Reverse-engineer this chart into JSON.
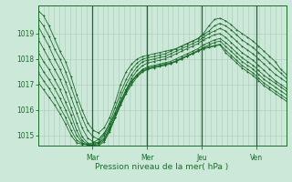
{
  "title": "",
  "xlabel": "Pression niveau de la mer( hPa )",
  "bg_color": "#cce8d8",
  "plot_bg_color": "#cce8d8",
  "grid_color": "#aac8b8",
  "line_color": "#1a6b2a",
  "ylim": [
    1014.6,
    1020.1
  ],
  "yticks": [
    1015,
    1016,
    1017,
    1018,
    1019
  ],
  "day_labels": [
    "Mar",
    "Mer",
    "Jeu",
    "Ven"
  ],
  "day_positions": [
    0.22,
    0.44,
    0.66,
    0.88
  ],
  "series": [
    [
      1019.9,
      1019.7,
      1019.3,
      1018.8,
      1018.3,
      1017.9,
      1017.3,
      1016.6,
      1016.0,
      1015.5,
      1015.2,
      1015.1,
      1015.3,
      1015.7,
      1016.3,
      1017.0,
      1017.5,
      1017.8,
      1018.0,
      1018.1,
      1018.15,
      1018.2,
      1018.25,
      1018.3,
      1018.35,
      1018.4,
      1018.5,
      1018.6,
      1018.7,
      1018.8,
      1019.0,
      1019.3,
      1019.55,
      1019.6,
      1019.5,
      1019.35,
      1019.15,
      1019.0,
      1018.85,
      1018.7,
      1018.5,
      1018.3,
      1018.1,
      1017.9,
      1017.6,
      1017.4
    ],
    [
      1019.6,
      1019.3,
      1018.9,
      1018.4,
      1018.0,
      1017.5,
      1016.9,
      1016.3,
      1015.7,
      1015.2,
      1014.95,
      1014.85,
      1015.05,
      1015.5,
      1016.1,
      1016.7,
      1017.2,
      1017.6,
      1017.85,
      1018.0,
      1018.05,
      1018.1,
      1018.15,
      1018.2,
      1018.3,
      1018.4,
      1018.5,
      1018.6,
      1018.7,
      1018.8,
      1018.95,
      1019.1,
      1019.3,
      1019.4,
      1019.3,
      1019.15,
      1018.95,
      1018.75,
      1018.6,
      1018.45,
      1018.25,
      1018.05,
      1017.85,
      1017.65,
      1017.45,
      1017.25
    ],
    [
      1019.3,
      1018.9,
      1018.5,
      1018.0,
      1017.6,
      1017.1,
      1016.5,
      1015.9,
      1015.3,
      1014.9,
      1014.75,
      1014.7,
      1014.85,
      1015.3,
      1015.9,
      1016.5,
      1017.0,
      1017.4,
      1017.7,
      1017.9,
      1017.95,
      1018.0,
      1018.05,
      1018.1,
      1018.2,
      1018.3,
      1018.4,
      1018.5,
      1018.6,
      1018.7,
      1018.85,
      1019.0,
      1019.1,
      1019.2,
      1019.1,
      1018.9,
      1018.7,
      1018.5,
      1018.35,
      1018.2,
      1018.0,
      1017.8,
      1017.6,
      1017.4,
      1017.25,
      1017.1
    ],
    [
      1018.8,
      1018.4,
      1018.0,
      1017.6,
      1017.2,
      1016.7,
      1016.1,
      1015.5,
      1014.95,
      1014.7,
      1014.6,
      1014.6,
      1014.75,
      1015.15,
      1015.7,
      1016.3,
      1016.8,
      1017.25,
      1017.55,
      1017.75,
      1017.85,
      1017.9,
      1017.95,
      1018.0,
      1018.1,
      1018.2,
      1018.3,
      1018.4,
      1018.5,
      1018.6,
      1018.75,
      1018.85,
      1018.95,
      1019.0,
      1018.85,
      1018.65,
      1018.45,
      1018.25,
      1018.1,
      1017.95,
      1017.75,
      1017.55,
      1017.35,
      1017.15,
      1017.0,
      1016.85
    ],
    [
      1018.3,
      1017.9,
      1017.6,
      1017.2,
      1016.8,
      1016.3,
      1015.8,
      1015.2,
      1014.8,
      1014.65,
      1014.6,
      1014.65,
      1014.8,
      1015.2,
      1015.7,
      1016.2,
      1016.7,
      1017.1,
      1017.4,
      1017.6,
      1017.7,
      1017.75,
      1017.8,
      1017.85,
      1017.9,
      1018.0,
      1018.1,
      1018.2,
      1018.3,
      1018.4,
      1018.55,
      1018.65,
      1018.75,
      1018.8,
      1018.65,
      1018.45,
      1018.25,
      1018.05,
      1017.9,
      1017.75,
      1017.55,
      1017.35,
      1017.2,
      1017.05,
      1016.9,
      1016.75
    ],
    [
      1017.9,
      1017.5,
      1017.2,
      1016.85,
      1016.45,
      1016.0,
      1015.5,
      1015.0,
      1014.72,
      1014.62,
      1014.62,
      1014.7,
      1014.9,
      1015.25,
      1015.7,
      1016.2,
      1016.65,
      1017.0,
      1017.3,
      1017.5,
      1017.6,
      1017.65,
      1017.7,
      1017.75,
      1017.8,
      1017.9,
      1018.0,
      1018.1,
      1018.2,
      1018.3,
      1018.45,
      1018.55,
      1018.65,
      1018.7,
      1018.5,
      1018.3,
      1018.1,
      1017.9,
      1017.75,
      1017.6,
      1017.4,
      1017.2,
      1017.05,
      1016.9,
      1016.75,
      1016.6
    ],
    [
      1017.5,
      1017.15,
      1016.85,
      1016.5,
      1016.1,
      1015.7,
      1015.2,
      1014.82,
      1014.68,
      1014.62,
      1014.65,
      1014.75,
      1015.0,
      1015.35,
      1015.8,
      1016.3,
      1016.75,
      1017.1,
      1017.35,
      1017.52,
      1017.62,
      1017.68,
      1017.73,
      1017.78,
      1017.83,
      1017.93,
      1018.03,
      1018.13,
      1018.23,
      1018.33,
      1018.43,
      1018.48,
      1018.53,
      1018.58,
      1018.35,
      1018.15,
      1017.95,
      1017.75,
      1017.6,
      1017.45,
      1017.25,
      1017.05,
      1016.9,
      1016.75,
      1016.6,
      1016.45
    ],
    [
      1017.1,
      1016.8,
      1016.5,
      1016.2,
      1015.85,
      1015.45,
      1015.0,
      1014.72,
      1014.65,
      1014.65,
      1014.72,
      1014.85,
      1015.1,
      1015.45,
      1015.9,
      1016.35,
      1016.8,
      1017.15,
      1017.4,
      1017.57,
      1017.65,
      1017.7,
      1017.75,
      1017.8,
      1017.85,
      1017.9,
      1018.0,
      1018.1,
      1018.2,
      1018.3,
      1018.4,
      1018.45,
      1018.5,
      1018.55,
      1018.25,
      1018.05,
      1017.85,
      1017.65,
      1017.5,
      1017.35,
      1017.15,
      1016.95,
      1016.8,
      1016.65,
      1016.5,
      1016.35
    ]
  ]
}
